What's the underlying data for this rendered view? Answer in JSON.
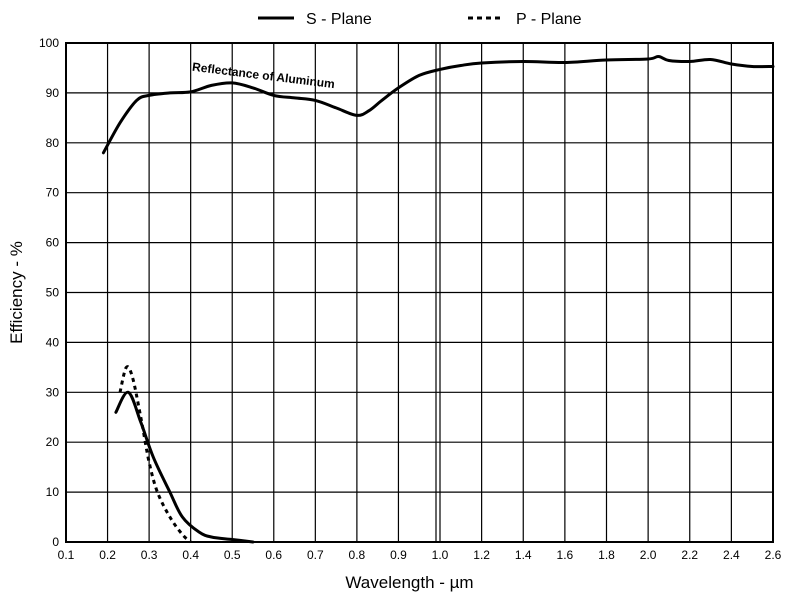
{
  "chart_data": {
    "type": "line",
    "xlabel": "Wavelength - µm",
    "ylabel": "Efficiency - %",
    "ylim": [
      0,
      100
    ],
    "x_ticks": [
      0.1,
      0.2,
      0.3,
      0.4,
      0.5,
      0.6,
      0.7,
      0.8,
      0.9,
      1.0,
      1.2,
      1.4,
      1.6,
      1.8,
      2.0,
      2.2,
      2.4,
      2.6
    ],
    "x_tick_labels": [
      "0.1",
      "0.2",
      "0.3",
      "0.4",
      "0.5",
      "0.6",
      "0.7",
      "0.8",
      "0.9",
      "1.0",
      "1.2",
      "1.4",
      "1.6",
      "1.8",
      "2.0",
      "2.2",
      "2.4",
      "2.6"
    ],
    "y_ticks": [
      0,
      10,
      20,
      30,
      40,
      50,
      60,
      70,
      80,
      90,
      100
    ],
    "y_tick_labels": [
      "0",
      "10",
      "20",
      "30",
      "40",
      "50",
      "60",
      "70",
      "80",
      "90",
      "100"
    ],
    "grid": true,
    "legend_position": "top-center",
    "legend": [
      {
        "label": "S - Plane",
        "style": "solid"
      },
      {
        "label": "P - Plane",
        "style": "dashed"
      }
    ],
    "series": [
      {
        "name": "S - Plane",
        "style": "solid",
        "x": [
          0.22,
          0.25,
          0.28,
          0.31,
          0.35,
          0.38,
          0.42,
          0.45,
          0.5,
          0.55
        ],
        "y": [
          26,
          30,
          24,
          17,
          10,
          5,
          2,
          1,
          0.5,
          0
        ]
      },
      {
        "name": "P - Plane",
        "style": "dashed",
        "x": [
          0.23,
          0.245,
          0.26,
          0.28,
          0.3,
          0.32,
          0.35,
          0.38,
          0.4
        ],
        "y": [
          30,
          35,
          33,
          25,
          16,
          10,
          5,
          1.5,
          0
        ]
      },
      {
        "name": "Reflectance of Aluminum",
        "style": "solid",
        "x": [
          0.19,
          0.23,
          0.27,
          0.3,
          0.35,
          0.4,
          0.45,
          0.5,
          0.55,
          0.6,
          0.65,
          0.7,
          0.75,
          0.8,
          0.83,
          0.86,
          0.9,
          0.95,
          1.0,
          1.1,
          1.2,
          1.4,
          1.6,
          1.8,
          2.0,
          2.05,
          2.1,
          2.2,
          2.3,
          2.4,
          2.5,
          2.6
        ],
        "y": [
          78,
          84,
          88.5,
          89.5,
          90,
          90.2,
          91.5,
          92,
          91,
          89.5,
          89,
          88.5,
          87,
          85.5,
          86.5,
          88.5,
          91,
          93.5,
          94.7,
          95.5,
          96,
          96.3,
          96.1,
          96.6,
          96.8,
          97.3,
          96.5,
          96.3,
          96.7,
          95.8,
          95.3,
          95.3
        ]
      }
    ],
    "annotations": [
      {
        "text": "Reflectance of Aluminum",
        "x": 0.55,
        "y": 91.5
      }
    ]
  },
  "colors": {
    "line": "#000000",
    "grid": "#000000",
    "background": "#ffffff"
  }
}
